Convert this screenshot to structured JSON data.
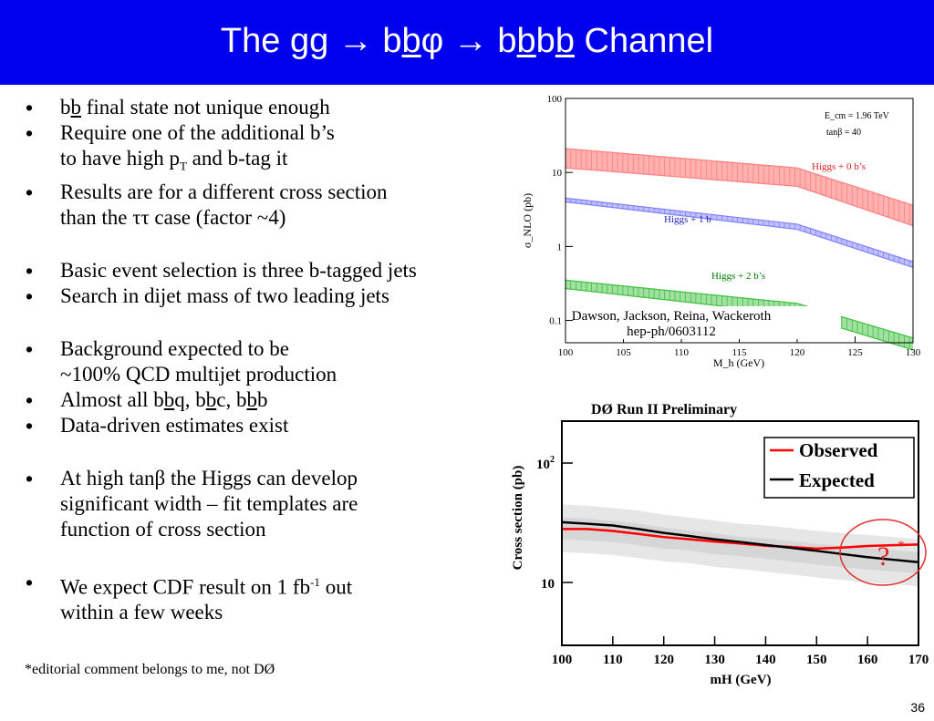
{
  "slide": {
    "title_parts": {
      "p1": "The gg ",
      "p2": "→ b",
      "p3": "b",
      "p4": "φ ",
      "p5": "→ b",
      "p6": "b",
      "p7": "b",
      "p8": "b",
      "p9": " Channel"
    },
    "bullets": [
      {
        "a": "b",
        "b": "b",
        "c": " final state not unique enough"
      },
      {
        "a": "Require one of the additional b’s",
        "b": "to have high p",
        "sub": "T",
        "c": " and b-tag it"
      },
      {
        "a": "Results are for a different cross section",
        "b": "than the ττ case (factor ~4)"
      },
      {
        "a": "Basic event selection is three b-tagged jets"
      },
      {
        "a": "Search in dijet mass of two leading jets"
      },
      {
        "a": "Background expected to be",
        "b": "~100% QCD multijet production"
      },
      {
        "a": "Almost all b",
        "b": "b",
        "c": "q, b",
        "d": "b",
        "e": "c, b",
        "f": "b",
        "g": "b"
      },
      {
        "a": "Data-driven estimates exist"
      },
      {
        "a": "At high tanβ the Higgs can develop",
        "b": "significant width – fit templates are",
        "c": "function of cross section"
      },
      {
        "a": "We expect CDF result on 1 fb",
        "sup": "-1",
        "b": " out",
        "c": "within a few weeks"
      }
    ],
    "footnote": "*editorial comment belongs to me, not DØ",
    "page_number": "36"
  },
  "chart_data": [
    {
      "type": "area",
      "xlabel": "M_h (GeV)",
      "ylabel": "σ_NLO (pb)",
      "xlim": [
        100,
        130
      ],
      "ylim": [
        0.05,
        100
      ],
      "log_y": true,
      "xticks": [
        "100",
        "105",
        "110",
        "115",
        "120",
        "125",
        "130"
      ],
      "yticks": [
        "0.1",
        "1",
        "10",
        "100"
      ],
      "annotations": {
        "ecm": "E_cm = 1.96 TeV",
        "tanb": "tanβ = 40"
      },
      "citation": {
        "line1": "Dawson, Jackson, Reina, Wackeroth",
        "line2": "hep-ph/0603112"
      },
      "x": [
        100,
        120,
        130
      ],
      "series": [
        {
          "name": "Higgs + 0 b’s",
          "color": "#ff8080",
          "upper": [
            21,
            11.5,
            3.6
          ],
          "lower": [
            11.5,
            6.5,
            1.9
          ]
        },
        {
          "name": "Higgs + 1 b",
          "color": "#8080ff",
          "upper": [
            4.5,
            2.0,
            0.62
          ],
          "lower": [
            4.0,
            1.7,
            0.52
          ]
        },
        {
          "name": "Higgs + 2 b’s",
          "color": "#40c040",
          "upper": [
            0.35,
            0.17,
            0.058
          ],
          "lower": [
            0.27,
            0.12,
            0.04
          ]
        }
      ]
    },
    {
      "type": "line",
      "title": "DØ Run II Preliminary",
      "xlabel": "mH (GeV)",
      "ylabel": "Cross section (pb)",
      "xlim": [
        100,
        170
      ],
      "log_y": true,
      "xticks": [
        "100",
        "110",
        "120",
        "130",
        "140",
        "150",
        "160",
        "170"
      ],
      "yticks": [
        {
          "label": "10",
          "v": 10
        },
        {
          "label": "10",
          "sup": "2",
          "v": 100
        }
      ],
      "legend_position": "top-right",
      "callout": {
        "mark": "?",
        "star": "*"
      },
      "x": [
        100,
        105,
        110,
        115,
        120,
        125,
        130,
        135,
        140,
        145,
        150,
        155,
        160,
        165,
        170
      ],
      "series": [
        {
          "name": "Observed",
          "color": "#ff0000",
          "values": [
            28,
            28,
            27,
            25.5,
            24,
            23,
            22,
            21.2,
            20.3,
            19.8,
            19.2,
            19.6,
            20.2,
            20.5,
            20.8
          ]
        },
        {
          "name": "Expected",
          "color": "#000000",
          "values": [
            32,
            31,
            30,
            28,
            26,
            24.5,
            23,
            21.8,
            20.6,
            19.5,
            18.4,
            17.3,
            16.3,
            15.5,
            14.8
          ]
        }
      ],
      "band": {
        "color": "#e6e6e6",
        "upper": [
          45,
          44,
          42,
          40,
          37,
          35,
          33,
          31,
          30,
          28.5,
          27,
          26,
          25,
          24,
          23
        ],
        "lower": [
          18,
          17.5,
          17,
          16,
          15,
          14.5,
          13.5,
          13,
          12.3,
          11.7,
          11,
          10.5,
          10,
          9.7,
          9.3
        ]
      }
    }
  ]
}
